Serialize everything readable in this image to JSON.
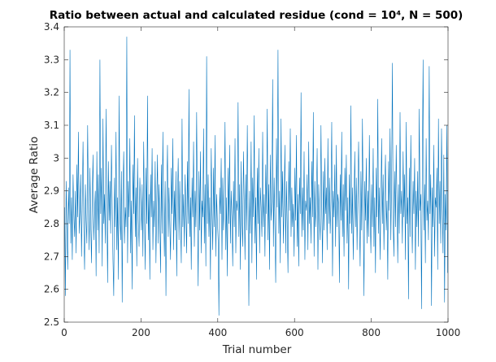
{
  "chart_data": {
    "type": "line",
    "title": "Ratio between actual and calculated residue (cond = 10⁴, N = 500)",
    "x_label": "Trial number",
    "y_label": "Average Ratio",
    "color": "#0072bd",
    "xlim": [
      0,
      1000
    ],
    "xticks": [
      0,
      200,
      400,
      600,
      800,
      1000
    ],
    "ylim": [
      2.5,
      3.4
    ],
    "yticks": [
      2.5,
      2.6,
      2.7,
      2.8,
      2.9,
      3,
      3.1,
      3.2,
      3.3,
      3.4
    ],
    "x": [
      1,
      3,
      5,
      7,
      9,
      11,
      13,
      15,
      17,
      19,
      21,
      23,
      25,
      27,
      29,
      31,
      33,
      35,
      37,
      39,
      41,
      43,
      45,
      47,
      49,
      51,
      53,
      55,
      57,
      59,
      61,
      63,
      65,
      67,
      69,
      71,
      73,
      75,
      77,
      79,
      81,
      83,
      85,
      87,
      89,
      91,
      93,
      95,
      97,
      99,
      101,
      103,
      105,
      107,
      109,
      111,
      113,
      115,
      117,
      119,
      121,
      123,
      125,
      127,
      129,
      131,
      133,
      135,
      137,
      139,
      141,
      143,
      145,
      147,
      149,
      151,
      153,
      155,
      157,
      159,
      161,
      163,
      165,
      167,
      169,
      171,
      173,
      175,
      177,
      179,
      181,
      183,
      185,
      187,
      189,
      191,
      193,
      195,
      197,
      199,
      201,
      203,
      205,
      207,
      209,
      211,
      213,
      215,
      217,
      219,
      221,
      223,
      225,
      227,
      229,
      231,
      233,
      235,
      237,
      239,
      241,
      243,
      245,
      247,
      249,
      251,
      253,
      255,
      257,
      259,
      261,
      263,
      265,
      267,
      269,
      271,
      273,
      275,
      277,
      279,
      281,
      283,
      285,
      287,
      289,
      291,
      293,
      295,
      297,
      299,
      301,
      303,
      305,
      307,
      309,
      311,
      313,
      315,
      317,
      319,
      321,
      323,
      325,
      327,
      329,
      331,
      333,
      335,
      337,
      339,
      341,
      343,
      345,
      347,
      349,
      351,
      353,
      355,
      357,
      359,
      361,
      363,
      365,
      367,
      369,
      371,
      373,
      375,
      377,
      379,
      381,
      383,
      385,
      387,
      389,
      391,
      393,
      395,
      397,
      399,
      401,
      403,
      405,
      407,
      409,
      411,
      413,
      415,
      417,
      419,
      421,
      423,
      425,
      427,
      429,
      431,
      433,
      435,
      437,
      439,
      441,
      443,
      445,
      447,
      449,
      451,
      453,
      455,
      457,
      459,
      461,
      463,
      465,
      467,
      469,
      471,
      473,
      475,
      477,
      479,
      481,
      483,
      485,
      487,
      489,
      491,
      493,
      495,
      497,
      499,
      501,
      503,
      505,
      507,
      509,
      511,
      513,
      515,
      517,
      519,
      521,
      523,
      525,
      527,
      529,
      531,
      533,
      535,
      537,
      539,
      541,
      543,
      545,
      547,
      549,
      551,
      553,
      555,
      557,
      559,
      561,
      563,
      565,
      567,
      569,
      571,
      573,
      575,
      577,
      579,
      581,
      583,
      585,
      587,
      589,
      591,
      593,
      595,
      597,
      599,
      601,
      603,
      605,
      607,
      609,
      611,
      613,
      615,
      617,
      619,
      621,
      623,
      625,
      627,
      629,
      631,
      633,
      635,
      637,
      639,
      641,
      643,
      645,
      647,
      649,
      651,
      653,
      655,
      657,
      659,
      661,
      663,
      665,
      667,
      669,
      671,
      673,
      675,
      677,
      679,
      681,
      683,
      685,
      687,
      689,
      691,
      693,
      695,
      697,
      699,
      701,
      703,
      705,
      707,
      709,
      711,
      713,
      715,
      717,
      719,
      721,
      723,
      725,
      727,
      729,
      731,
      733,
      735,
      737,
      739,
      741,
      743,
      745,
      747,
      749,
      751,
      753,
      755,
      757,
      759,
      761,
      763,
      765,
      767,
      769,
      771,
      773,
      775,
      777,
      779,
      781,
      783,
      785,
      787,
      789,
      791,
      793,
      795,
      797,
      799,
      801,
      803,
      805,
      807,
      809,
      811,
      813,
      815,
      817,
      819,
      821,
      823,
      825,
      827,
      829,
      831,
      833,
      835,
      837,
      839,
      841,
      843,
      845,
      847,
      849,
      851,
      853,
      855,
      857,
      859,
      861,
      863,
      865,
      867,
      869,
      871,
      873,
      875,
      877,
      879,
      881,
      883,
      885,
      887,
      889,
      891,
      893,
      895,
      897,
      899,
      901,
      903,
      905,
      907,
      909,
      911,
      913,
      915,
      917,
      919,
      921,
      923,
      925,
      927,
      929,
      931,
      933,
      935,
      937,
      939,
      941,
      943,
      945,
      947,
      949,
      951,
      953,
      955,
      957,
      959,
      961,
      963,
      965,
      967,
      969,
      971,
      973,
      975,
      977,
      979,
      981,
      983,
      985,
      987,
      989,
      991,
      993,
      995,
      997,
      999
    ],
    "values": [
      2.85,
      2.58,
      2.93,
      2.78,
      2.66,
      2.91,
      2.8,
      3.33,
      2.74,
      2.88,
      2.69,
      2.95,
      2.83,
      2.76,
      2.9,
      2.71,
      2.98,
      2.82,
      3.08,
      2.77,
      2.84,
      2.95,
      2.7,
      2.87,
      3.05,
      2.79,
      2.66,
      2.92,
      2.81,
      2.74,
      3.1,
      2.86,
      2.72,
      2.97,
      2.8,
      2.68,
      2.89,
      3.01,
      2.75,
      2.83,
      2.9,
      2.64,
      3.02,
      2.78,
      2.95,
      2.71,
      3.3,
      2.83,
      2.97,
      2.67,
      3.12,
      2.8,
      2.89,
      2.74,
      3.15,
      2.85,
      2.62,
      2.99,
      2.81,
      2.93,
      2.77,
      3.04,
      2.86,
      2.69,
      2.58,
      2.94,
      2.79,
      3.08,
      2.72,
      2.88,
      2.63,
      3.19,
      2.82,
      2.75,
      2.96,
      2.56,
      2.9,
      3.02,
      2.74,
      2.85,
      2.79,
      3.37,
      2.68,
      2.93,
      2.82,
      3.06,
      2.71,
      2.87,
      2.6,
      2.98,
      2.83,
      3.13,
      2.76,
      2.91,
      2.67,
      3.0,
      2.81,
      2.73,
      2.94,
      2.86,
      2.78,
      2.92,
      2.7,
      3.05,
      2.84,
      2.66,
      2.97,
      2.8,
      3.19,
      2.75,
      2.89,
      2.63,
      2.95,
      2.82,
      3.03,
      2.72,
      2.87,
      2.79,
      2.99,
      2.68,
      2.86,
      3.01,
      2.74,
      2.92,
      2.81,
      2.65,
      2.98,
      2.77,
      3.08,
      2.84,
      2.7,
      2.93,
      2.58,
      2.88,
      3.04,
      2.76,
      2.91,
      2.8,
      2.69,
      2.97,
      2.83,
      3.06,
      2.72,
      2.9,
      2.78,
      2.96,
      2.64,
      2.87,
      3.0,
      2.75,
      2.93,
      2.81,
      2.68,
      3.12,
      2.79,
      2.89,
      2.73,
      2.95,
      2.84,
      2.71,
      2.99,
      2.8,
      3.21,
      2.76,
      2.88,
      2.66,
      2.94,
      2.82,
      3.05,
      2.73,
      2.9,
      2.79,
      3.14,
      2.85,
      2.61,
      2.96,
      2.78,
      3.02,
      2.71,
      2.87,
      2.82,
      3.09,
      2.74,
      2.92,
      2.67,
      3.31,
      2.8,
      2.95,
      2.76,
      2.88,
      2.63,
      3.03,
      2.84,
      2.72,
      2.97,
      2.79,
      3.07,
      2.7,
      2.89,
      2.81,
      2.75,
      2.52,
      2.91,
      2.83,
      3.0,
      2.69,
      2.94,
      2.78,
      2.86,
      3.11,
      2.72,
      2.88,
      2.64,
      2.97,
      2.8,
      3.04,
      2.74,
      2.9,
      2.82,
      2.67,
      2.93,
      2.79,
      3.06,
      2.71,
      2.87,
      2.84,
      3.17,
      2.76,
      2.92,
      2.66,
      2.99,
      2.81,
      2.73,
      3.02,
      2.86,
      2.69,
      2.95,
      2.78,
      3.1,
      2.83,
      2.55,
      2.9,
      2.77,
      3.05,
      2.68,
      2.94,
      2.82,
      3.13,
      2.74,
      2.88,
      2.63,
      2.97,
      2.8,
      3.03,
      2.71,
      2.91,
      2.85,
      2.76,
      3.08,
      2.79,
      2.89,
      2.7,
      2.98,
      2.83,
      3.15,
      2.75,
      2.92,
      2.66,
      3.01,
      2.81,
      2.87,
      3.24,
      2.73,
      2.94,
      2.79,
      2.62,
      3.06,
      2.85,
      3.33,
      2.77,
      2.9,
      2.68,
      3.12,
      2.82,
      2.96,
      2.74,
      2.88,
      3.04,
      2.71,
      2.93,
      2.8,
      2.65,
      2.99,
      2.84,
      3.09,
      2.76,
      2.91,
      2.79,
      2.86,
      2.7,
      2.97,
      2.81,
      3.07,
      2.73,
      2.89,
      2.67,
      2.94,
      2.83,
      3.2,
      2.76,
      2.91,
      2.78,
      3.02,
      2.69,
      2.87,
      2.84,
      2.95,
      2.72,
      3.05,
      2.8,
      2.88,
      2.74,
      2.99,
      2.82,
      3.14,
      2.7,
      2.93,
      2.79,
      2.86,
      3.03,
      2.66,
      2.92,
      2.81,
      2.75,
      3.1,
      2.85,
      2.68,
      2.96,
      2.78,
      3.0,
      2.83,
      2.91,
      2.72,
      3.06,
      2.8,
      2.94,
      2.77,
      2.87,
      3.11,
      2.64,
      2.9,
      2.82,
      2.98,
      2.73,
      3.04,
      2.79,
      2.89,
      2.86,
      2.62,
      2.95,
      2.81,
      3.08,
      2.76,
      2.92,
      2.7,
      2.97,
      2.84,
      3.01,
      2.74,
      2.88,
      2.6,
      2.95,
      2.8,
      3.16,
      2.77,
      2.91,
      2.69,
      2.86,
      3.02,
      2.79,
      2.94,
      2.72,
      2.89,
      3.05,
      2.83,
      2.67,
      2.96,
      2.78,
      3.12,
      2.85,
      2.58,
      2.93,
      2.81,
      3.0,
      2.74,
      2.9,
      2.76,
      3.07,
      2.84,
      2.71,
      2.92,
      2.79,
      3.03,
      2.73,
      2.88,
      2.65,
      2.97,
      2.82,
      3.18,
      2.77,
      2.91,
      2.69,
      2.86,
      3.06,
      2.8,
      2.95,
      2.72,
      2.89,
      3.01,
      2.78,
      2.87,
      2.63,
      2.99,
      2.84,
      3.09,
      2.75,
      2.93,
      3.29,
      2.81,
      2.7,
      2.96,
      2.79,
      3.04,
      2.86,
      2.68,
      2.92,
      2.77,
      3.14,
      2.83,
      2.9,
      2.74,
      3.02,
      2.82,
      2.95,
      2.69,
      3.11,
      2.8,
      2.88,
      2.57,
      2.97,
      2.76,
      3.07,
      2.85,
      2.71,
      2.93,
      2.83,
      3.0,
      2.66,
      2.9,
      2.79,
      2.96,
      2.73,
      3.15,
      2.84,
      2.89,
      2.54,
      2.98,
      3.3,
      2.78,
      2.92,
      2.68,
      3.06,
      2.81,
      2.87,
      2.75,
      3.28,
      2.83,
      2.95,
      2.55,
      2.91,
      2.79,
      3.04,
      2.7,
      2.88,
      2.85,
      2.97,
      2.66,
      3.12,
      2.8,
      2.93,
      2.74,
      3.09,
      2.86,
      2.71,
      3.01,
      2.56,
      2.89,
      2.78,
      3.1,
      2.65
    ]
  }
}
